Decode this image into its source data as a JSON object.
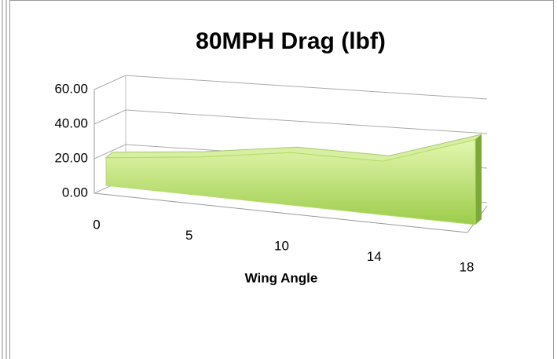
{
  "chart_data": {
    "type": "area3d",
    "title": "80MPH Drag (lbf)",
    "x_label": "Wing Angle",
    "categories": [
      "0",
      "5",
      "10",
      "14",
      "18"
    ],
    "values": [
      16,
      19,
      23,
      21,
      30
    ],
    "color": "#b5dd6a",
    "ylim": [
      0,
      60
    ],
    "yticks": [
      {
        "value": 0,
        "label": "0.00"
      },
      {
        "value": 20,
        "label": "20.00"
      },
      {
        "value": 40,
        "label": "40.00"
      },
      {
        "value": 60,
        "label": "60.00"
      }
    ],
    "grid": true
  }
}
